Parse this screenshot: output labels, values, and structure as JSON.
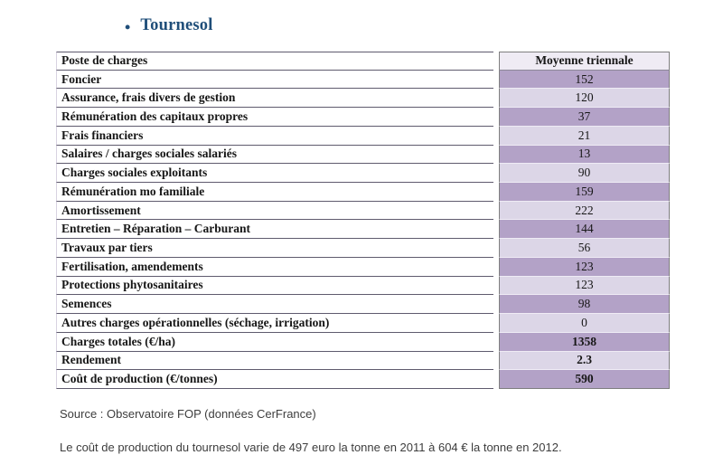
{
  "title": {
    "bullet": "•",
    "text": "Tournesol"
  },
  "table": {
    "headers": [
      "Poste de charges",
      "Moyenne triennale"
    ],
    "rows": [
      {
        "label": "Foncier",
        "value": "152",
        "bold": false
      },
      {
        "label": "Assurance, frais divers de gestion",
        "value": "120",
        "bold": false
      },
      {
        "label": "Rémunération des capitaux propres",
        "value": "37",
        "bold": false
      },
      {
        "label": "Frais financiers",
        "value": "21",
        "bold": false
      },
      {
        "label": "Salaires / charges sociales salariés",
        "value": "13",
        "bold": false
      },
      {
        "label": "Charges sociales exploitants",
        "value": "90",
        "bold": false
      },
      {
        "label": "Rémunération mo familiale",
        "value": "159",
        "bold": false
      },
      {
        "label": "Amortissement",
        "value": "222",
        "bold": false
      },
      {
        "label": "Entretien – Réparation – Carburant",
        "value": "144",
        "bold": false
      },
      {
        "label": "Travaux par tiers",
        "value": "56",
        "bold": false
      },
      {
        "label": "Fertilisation, amendements",
        "value": "123",
        "bold": false
      },
      {
        "label": "Protections phytosanitaires",
        "value": "123",
        "bold": false
      },
      {
        "label": "Semences",
        "value": "98",
        "bold": false
      },
      {
        "label": "Autres charges opérationnelles (séchage, irrigation)",
        "value": "0",
        "bold": false
      },
      {
        "label": "Charges totales (€/ha)",
        "value": "1358",
        "bold": true
      },
      {
        "label": "Rendement",
        "value": "2.3",
        "bold": true
      },
      {
        "label": "Coût de production (€/tonnes)",
        "value": "590",
        "bold": true
      }
    ]
  },
  "source": "Source : Observatoire FOP (données CerFrance)",
  "note": "Le coût de production du tournesol varie de 497 euro la tonne en 2011 à 604 € la tonne en 2012.",
  "colors": {
    "title_blue": "#1F4E79",
    "band_dark": "#B3A2C7",
    "band_light": "#DCD6E7",
    "header_value_bg": "#EFEBF4",
    "value_border": "#7F7F7F",
    "label_border": "#5F5B6E"
  }
}
